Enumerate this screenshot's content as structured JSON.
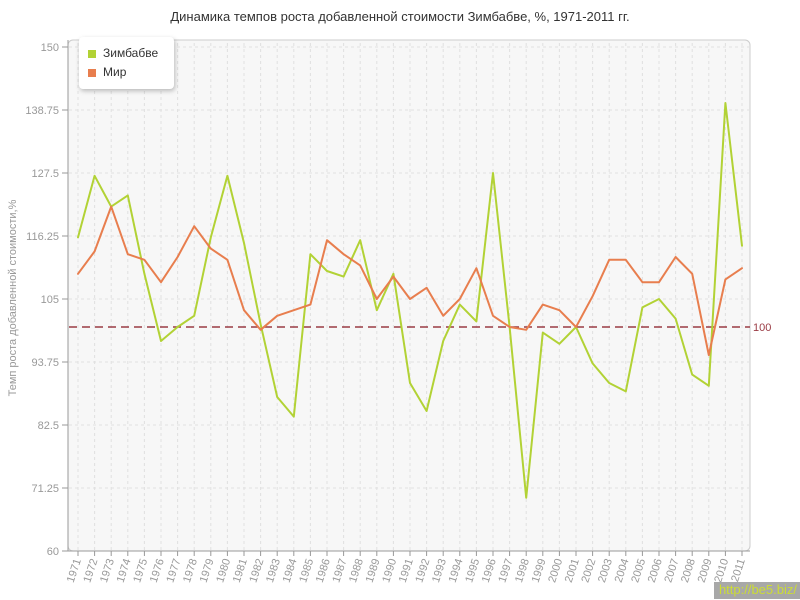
{
  "watermark": {
    "text": "http://be5.biz/"
  },
  "reference_line": {
    "value": 100,
    "label": "100",
    "color": "#9a3b44"
  },
  "chart_data": {
    "type": "line",
    "title": "Динамика темпов роста добавленной стоимости Зимбабве, %, 1971-2011 гг.",
    "xlabel": "",
    "ylabel": "Темп роста добавленной стоимости,%",
    "ylim": [
      60,
      150
    ],
    "yticks": [
      60,
      71.25,
      82.5,
      93.75,
      105,
      116.25,
      127.5,
      138.75,
      150
    ],
    "grid": true,
    "legend_position": "top-left",
    "categories": [
      "1971",
      "1972",
      "1973",
      "1974",
      "1975",
      "1976",
      "1977",
      "1978",
      "1979",
      "1980",
      "1981",
      "1982",
      "1983",
      "1984",
      "1985",
      "1986",
      "1987",
      "1988",
      "1989",
      "1990",
      "1991",
      "1992",
      "1993",
      "1994",
      "1995",
      "1996",
      "1997",
      "1998",
      "1999",
      "2000",
      "2001",
      "2002",
      "2003",
      "2004",
      "2005",
      "2006",
      "2007",
      "2008",
      "2009",
      "2010",
      "2011"
    ],
    "series": [
      {
        "id": "zimbabwe",
        "name": "Зимбабве",
        "color": "#b2d235",
        "values": [
          116,
          127,
          121.5,
          123.5,
          109.5,
          97.5,
          100,
          102,
          116,
          127,
          115,
          100.5,
          87.5,
          84,
          113,
          110,
          109,
          115.5,
          103,
          109.5,
          90,
          85,
          97.5,
          104,
          101,
          127.5,
          100,
          69.5,
          99,
          97,
          100,
          93.5,
          90,
          88.5,
          103.5,
          105,
          101.5,
          91.5,
          89.5,
          140,
          114.5
        ]
      },
      {
        "id": "world",
        "name": "Мир",
        "color": "#e87e4e",
        "values": [
          109.5,
          113.5,
          121.5,
          113,
          112,
          108,
          112.5,
          118,
          114,
          112,
          103,
          99.5,
          102,
          103,
          104,
          115.5,
          113,
          111,
          105,
          109,
          105,
          107,
          102,
          105,
          110.5,
          102,
          100,
          99.5,
          104,
          103,
          100,
          105.5,
          112,
          112,
          108,
          108,
          112.5,
          109.5,
          95,
          108.5,
          110.5
        ]
      }
    ]
  }
}
